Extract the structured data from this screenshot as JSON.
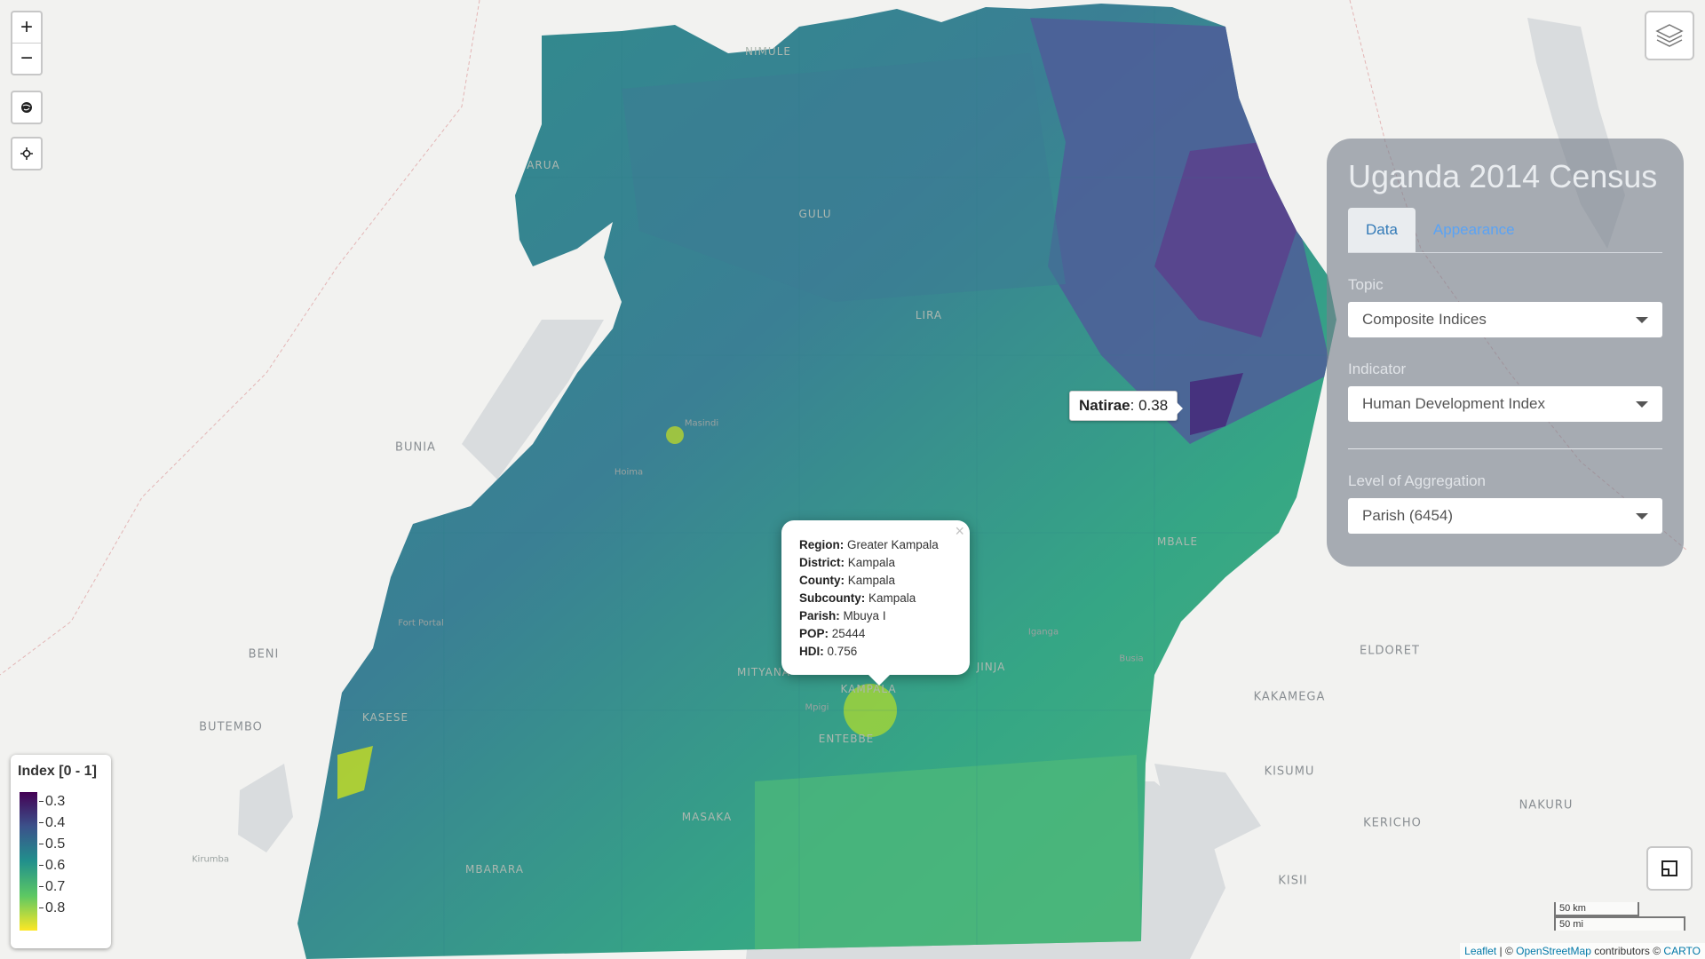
{
  "map": {
    "controls": {
      "zoom_in": "+",
      "zoom_out": "−",
      "globe_icon": "globe-icon",
      "locate_icon": "locate-icon",
      "layers_icon": "layers-icon",
      "fullscreen_icon": "fullscreen-icon"
    },
    "place_labels": {
      "nimule": "NIMULE",
      "arua": "ARUA",
      "gulu": "GULU",
      "lira": "LIRA",
      "bunia": "BUNIA",
      "masindi": "Masindi",
      "hoima": "Hoima",
      "mbale": "MBALE",
      "fort_portal": "Fort Portal",
      "beni": "BENI",
      "butembo": "BUTEMBO",
      "kasese": "KASESE",
      "mityana": "MITYANA",
      "kampala": "KAMPALA",
      "jinja": "JINJA",
      "iganga": "Iganga",
      "busia": "Busia",
      "entebbe": "ENTEBBE",
      "mpigi": "Mpigi",
      "masaka": "MASAKA",
      "mbarara": "MBARARA",
      "kirumba": "Kirumba",
      "eldoret": "ELDORET",
      "kakamega": "KAKAMEGA",
      "kisumu": "KISUMU",
      "kericho": "KERICHO",
      "nakuru": "NAKURU",
      "kisii": "KISII"
    },
    "hover_tooltip": {
      "name": "Natirae",
      "value": ": 0.38"
    },
    "popup": {
      "close": "×",
      "rows": [
        {
          "label": "Region:",
          "value": "Greater Kampala"
        },
        {
          "label": "District:",
          "value": "Kampala"
        },
        {
          "label": "County:",
          "value": "Kampala"
        },
        {
          "label": "Subcounty:",
          "value": "Kampala"
        },
        {
          "label": "Parish:",
          "value": "Mbuya I"
        },
        {
          "label": "POP:",
          "value": "25444"
        },
        {
          "label": "HDI:",
          "value": "0.756"
        }
      ]
    },
    "legend": {
      "title": "Index [0 - 1]",
      "ticks": [
        "0.3",
        "0.4",
        "0.5",
        "0.6",
        "0.7",
        "0.8"
      ],
      "palette": "viridis"
    },
    "scale": {
      "km": "50 km",
      "mi": "50 mi"
    },
    "attribution": {
      "leaflet": "Leaflet",
      "sep1": " | © ",
      "osm": "OpenStreetMap",
      "sep2": " contributors © ",
      "carto": "CARTO"
    }
  },
  "panel": {
    "title": "Uganda 2014 Census",
    "tabs": [
      "Data",
      "Appearance"
    ],
    "topic_label": "Topic",
    "topic_value": "Composite Indices",
    "indicator_label": "Indicator",
    "indicator_value": "Human Development Index",
    "aggregation_label": "Level of Aggregation",
    "aggregation_value": "Parish (6454)"
  },
  "colors": {
    "ocean_lake": "#d4d8db",
    "land": "#f2f2f0",
    "hdi_low": "#440154",
    "hdi_mid": "#21908c",
    "hdi_high": "#fde725",
    "link": "#0078a8",
    "tab_link": "#5aa3f5"
  }
}
